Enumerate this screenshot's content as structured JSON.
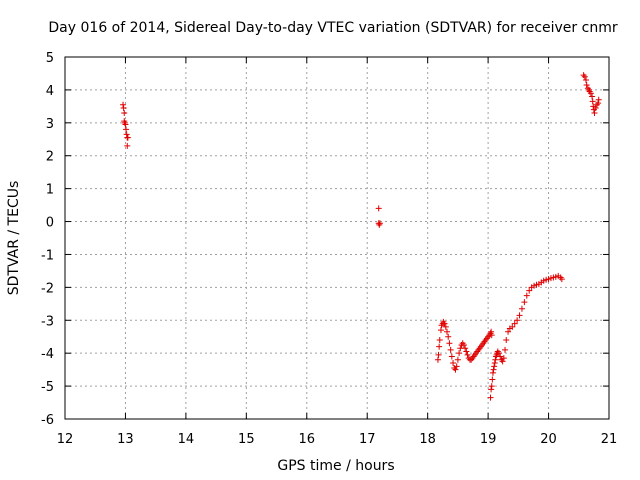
{
  "chart_data": {
    "type": "scatter",
    "title": "Day 016 of 2014, Sidereal Day-to-day VTEC variation (SDTVAR) for receiver cnmr",
    "xlabel": "GPS time / hours",
    "ylabel": "SDTVAR / TECUs",
    "xlim": [
      12,
      21
    ],
    "ylim": [
      -6,
      5
    ],
    "xticks": [
      "12",
      "13",
      "14",
      "15",
      "16",
      "17",
      "18",
      "19",
      "20",
      "21"
    ],
    "yticks": [
      "-6",
      "-5",
      "-4",
      "-3",
      "-2",
      "-1",
      "0",
      "1",
      "2",
      "3",
      "4",
      "5"
    ],
    "grid": true,
    "marker": "+",
    "color": "#e00000",
    "series": [
      {
        "name": "SDTVAR",
        "points": [
          [
            12.96,
            3.55
          ],
          [
            12.97,
            3.45
          ],
          [
            12.98,
            3.3
          ],
          [
            12.98,
            3.05
          ],
          [
            12.99,
            3.0
          ],
          [
            13.0,
            2.95
          ],
          [
            13.01,
            2.8
          ],
          [
            13.02,
            2.65
          ],
          [
            13.03,
            2.55
          ],
          [
            13.04,
            2.55
          ],
          [
            13.03,
            2.3
          ],
          [
            17.19,
            0.4
          ],
          [
            17.19,
            -0.05
          ],
          [
            17.2,
            -0.1
          ],
          [
            17.21,
            -0.05
          ],
          [
            18.17,
            -4.2
          ],
          [
            18.18,
            -4.05
          ],
          [
            18.19,
            -3.8
          ],
          [
            18.2,
            -3.6
          ],
          [
            18.22,
            -3.3
          ],
          [
            18.23,
            -3.15
          ],
          [
            18.25,
            -3.1
          ],
          [
            18.26,
            -3.05
          ],
          [
            18.28,
            -3.1
          ],
          [
            18.3,
            -3.2
          ],
          [
            18.32,
            -3.35
          ],
          [
            18.34,
            -3.5
          ],
          [
            18.36,
            -3.7
          ],
          [
            18.38,
            -3.9
          ],
          [
            18.4,
            -4.1
          ],
          [
            18.42,
            -4.3
          ],
          [
            18.44,
            -4.45
          ],
          [
            18.46,
            -4.5
          ],
          [
            18.48,
            -4.4
          ],
          [
            18.5,
            -4.2
          ],
          [
            18.52,
            -4.0
          ],
          [
            18.54,
            -3.85
          ],
          [
            18.56,
            -3.75
          ],
          [
            18.58,
            -3.7
          ],
          [
            18.6,
            -3.75
          ],
          [
            18.62,
            -3.85
          ],
          [
            18.64,
            -3.95
          ],
          [
            18.66,
            -4.05
          ],
          [
            18.68,
            -4.15
          ],
          [
            18.7,
            -4.2
          ],
          [
            18.72,
            -4.2
          ],
          [
            18.74,
            -4.15
          ],
          [
            18.76,
            -4.1
          ],
          [
            18.78,
            -4.05
          ],
          [
            18.8,
            -4.0
          ],
          [
            18.82,
            -3.95
          ],
          [
            18.84,
            -3.9
          ],
          [
            18.86,
            -3.85
          ],
          [
            18.88,
            -3.8
          ],
          [
            18.9,
            -3.75
          ],
          [
            18.92,
            -3.7
          ],
          [
            18.94,
            -3.65
          ],
          [
            18.96,
            -3.6
          ],
          [
            18.98,
            -3.55
          ],
          [
            19.0,
            -3.5
          ],
          [
            19.02,
            -3.45
          ],
          [
            19.04,
            -3.4
          ],
          [
            19.05,
            -3.35
          ],
          [
            19.06,
            -3.45
          ],
          [
            19.04,
            -5.35
          ],
          [
            19.05,
            -5.1
          ],
          [
            19.06,
            -5.0
          ],
          [
            19.07,
            -4.8
          ],
          [
            19.08,
            -4.6
          ],
          [
            19.09,
            -4.5
          ],
          [
            19.1,
            -4.4
          ],
          [
            19.11,
            -4.3
          ],
          [
            19.12,
            -4.2
          ],
          [
            19.13,
            -4.1
          ],
          [
            19.14,
            -4.05
          ],
          [
            19.15,
            -4.0
          ],
          [
            19.16,
            -3.95
          ],
          [
            19.18,
            -4.0
          ],
          [
            19.2,
            -4.1
          ],
          [
            19.22,
            -4.2
          ],
          [
            19.24,
            -4.25
          ],
          [
            19.26,
            -4.15
          ],
          [
            19.28,
            -3.9
          ],
          [
            19.3,
            -3.6
          ],
          [
            19.33,
            -3.35
          ],
          [
            19.36,
            -3.25
          ],
          [
            19.4,
            -3.2
          ],
          [
            19.44,
            -3.1
          ],
          [
            19.48,
            -3.0
          ],
          [
            19.52,
            -2.85
          ],
          [
            19.56,
            -2.65
          ],
          [
            19.6,
            -2.45
          ],
          [
            19.64,
            -2.25
          ],
          [
            19.68,
            -2.1
          ],
          [
            19.72,
            -2.0
          ],
          [
            19.76,
            -1.95
          ],
          [
            19.8,
            -1.92
          ],
          [
            19.84,
            -1.9
          ],
          [
            19.88,
            -1.85
          ],
          [
            19.92,
            -1.8
          ],
          [
            19.96,
            -1.77
          ],
          [
            20.0,
            -1.75
          ],
          [
            20.04,
            -1.72
          ],
          [
            20.08,
            -1.7
          ],
          [
            20.12,
            -1.68
          ],
          [
            20.16,
            -1.65
          ],
          [
            20.2,
            -1.7
          ],
          [
            20.22,
            -1.75
          ],
          [
            20.58,
            4.45
          ],
          [
            20.6,
            4.4
          ],
          [
            20.62,
            4.3
          ],
          [
            20.63,
            4.15
          ],
          [
            20.65,
            4.05
          ],
          [
            20.67,
            4.0
          ],
          [
            20.68,
            3.95
          ],
          [
            20.7,
            3.9
          ],
          [
            20.72,
            3.8
          ],
          [
            20.73,
            3.65
          ],
          [
            20.74,
            3.5
          ],
          [
            20.75,
            3.4
          ],
          [
            20.76,
            3.3
          ],
          [
            20.78,
            3.45
          ],
          [
            20.8,
            3.55
          ],
          [
            20.82,
            3.6
          ],
          [
            20.83,
            3.7
          ]
        ]
      }
    ]
  }
}
